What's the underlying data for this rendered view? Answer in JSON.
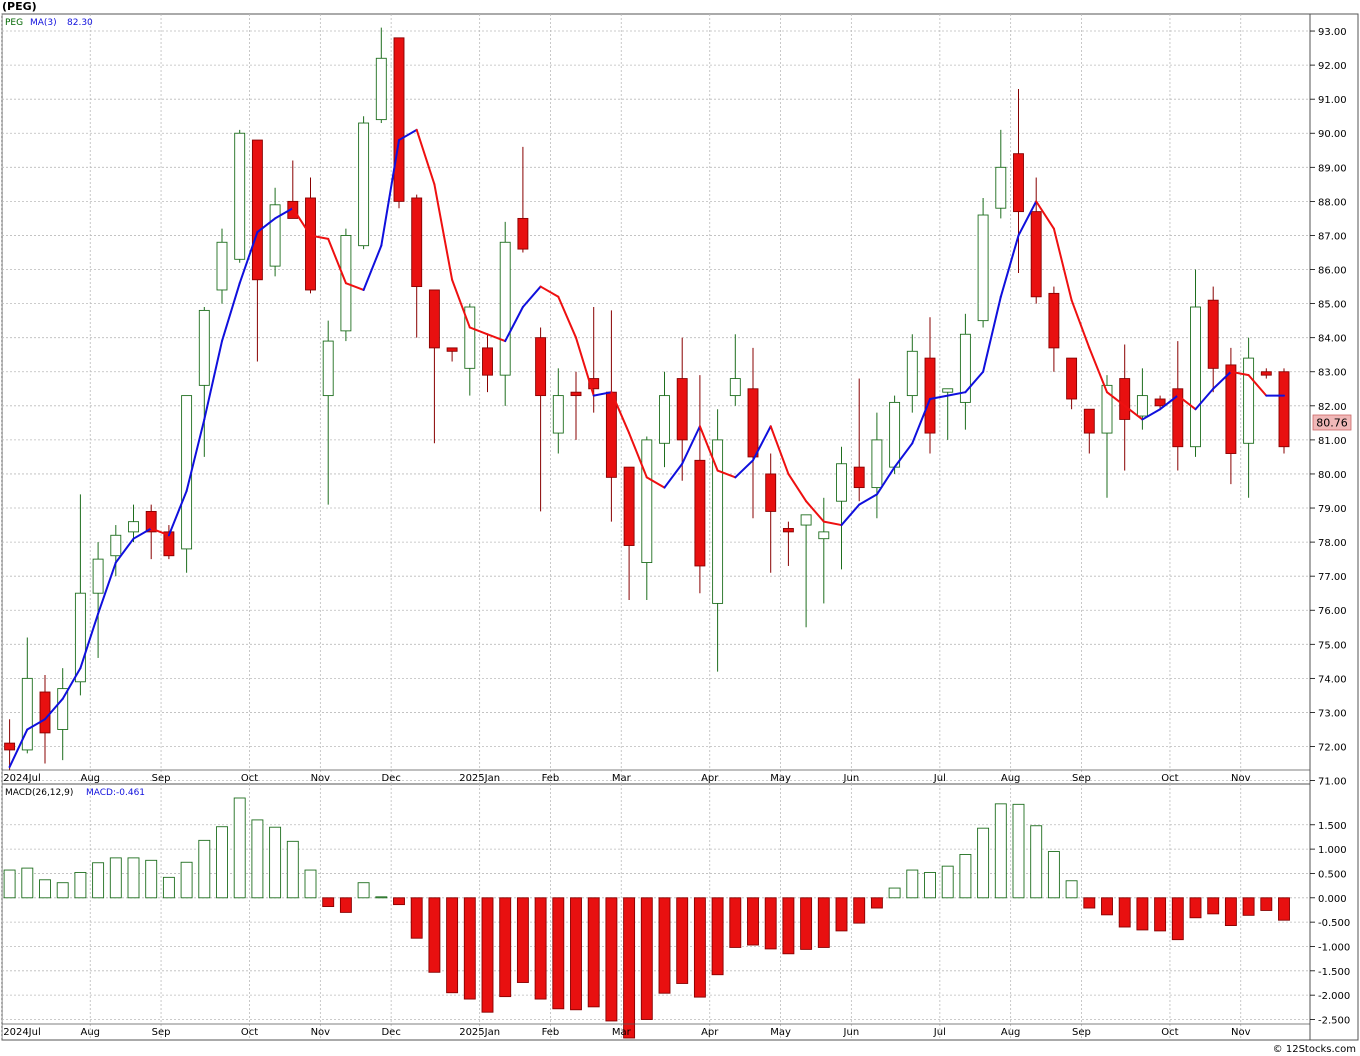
{
  "title": "(PEG)",
  "colors": {
    "up": "#1e6e1e",
    "down": "#e81010",
    "ma_up": "#1010dd",
    "ma_down": "#ee1010",
    "grid": "#bbbbbb",
    "last_price_bg": "#f0b8b8"
  },
  "footer": "© 12Stocks.com",
  "chart_data": [
    {
      "type": "candlestick",
      "panel": "price",
      "legend": {
        "ticker": "PEG",
        "ma_label": "MA(3)",
        "ma_value": "82.30"
      },
      "last_price_label": "80.76",
      "y_range": [
        70.9,
        93.5
      ],
      "y_ticks": [
        "71.00",
        "72.00",
        "73.00",
        "74.00",
        "75.00",
        "76.00",
        "77.00",
        "78.00",
        "79.00",
        "80.00",
        "81.00",
        "82.00",
        "83.00",
        "84.00",
        "85.00",
        "86.00",
        "87.00",
        "88.00",
        "89.00",
        "90.00",
        "91.00",
        "92.00",
        "93.00"
      ],
      "x_labels": [
        {
          "label": "2024Jul",
          "week": 0
        },
        {
          "label": "Aug",
          "week": 5
        },
        {
          "label": "Sep",
          "week": 9
        },
        {
          "label": "Oct",
          "week": 14
        },
        {
          "label": "Nov",
          "week": 18
        },
        {
          "label": "Dec",
          "week": 22
        },
        {
          "label": "2025Jan",
          "week": 27
        },
        {
          "label": "Feb",
          "week": 31
        },
        {
          "label": "Mar",
          "week": 35
        },
        {
          "label": "Apr",
          "week": 40
        },
        {
          "label": "May",
          "week": 44
        },
        {
          "label": "Jun",
          "week": 48
        },
        {
          "label": "Jul",
          "week": 53
        },
        {
          "label": "Aug",
          "week": 57
        },
        {
          "label": "Sep",
          "week": 61
        },
        {
          "label": "Oct",
          "week": 66
        },
        {
          "label": "Nov",
          "week": 70
        }
      ],
      "candles": [
        {
          "o": 72.1,
          "h": 72.8,
          "l": 71.3,
          "c": 71.9
        },
        {
          "o": 71.9,
          "h": 75.2,
          "l": 71.8,
          "c": 74.0
        },
        {
          "o": 73.6,
          "h": 74.1,
          "l": 71.5,
          "c": 72.4
        },
        {
          "o": 72.5,
          "h": 74.3,
          "l": 71.6,
          "c": 73.7
        },
        {
          "o": 73.9,
          "h": 79.4,
          "l": 73.5,
          "c": 76.5
        },
        {
          "o": 76.5,
          "h": 78.0,
          "l": 74.6,
          "c": 77.5
        },
        {
          "o": 77.6,
          "h": 78.5,
          "l": 77.0,
          "c": 78.2
        },
        {
          "o": 78.3,
          "h": 79.1,
          "l": 78.0,
          "c": 78.6
        },
        {
          "o": 78.9,
          "h": 79.1,
          "l": 77.5,
          "c": 78.3
        },
        {
          "o": 78.3,
          "h": 78.5,
          "l": 77.5,
          "c": 77.6
        },
        {
          "o": 77.8,
          "h": 82.3,
          "l": 77.1,
          "c": 82.3
        },
        {
          "o": 82.6,
          "h": 84.9,
          "l": 80.5,
          "c": 84.8
        },
        {
          "o": 85.4,
          "h": 87.2,
          "l": 85.0,
          "c": 86.8
        },
        {
          "o": 86.3,
          "h": 90.1,
          "l": 86.2,
          "c": 90.0
        },
        {
          "o": 89.8,
          "h": 89.8,
          "l": 83.3,
          "c": 85.7
        },
        {
          "o": 86.1,
          "h": 88.4,
          "l": 85.8,
          "c": 87.9
        },
        {
          "o": 88.0,
          "h": 89.2,
          "l": 87.5,
          "c": 87.5
        },
        {
          "o": 88.1,
          "h": 88.7,
          "l": 85.3,
          "c": 85.4
        },
        {
          "o": 82.3,
          "h": 84.5,
          "l": 79.1,
          "c": 83.9
        },
        {
          "o": 84.2,
          "h": 87.2,
          "l": 83.9,
          "c": 87.0
        },
        {
          "o": 86.7,
          "h": 90.5,
          "l": 86.6,
          "c": 90.3
        },
        {
          "o": 90.4,
          "h": 93.1,
          "l": 90.3,
          "c": 92.2
        },
        {
          "o": 92.8,
          "h": 92.8,
          "l": 87.8,
          "c": 88.0
        },
        {
          "o": 88.1,
          "h": 88.2,
          "l": 84.0,
          "c": 85.5
        },
        {
          "o": 85.4,
          "h": 85.4,
          "l": 80.9,
          "c": 83.7
        },
        {
          "o": 83.7,
          "h": 83.7,
          "l": 83.3,
          "c": 83.6
        },
        {
          "o": 83.1,
          "h": 85.0,
          "l": 82.3,
          "c": 84.9
        },
        {
          "o": 83.7,
          "h": 84.1,
          "l": 82.4,
          "c": 82.9
        },
        {
          "o": 82.9,
          "h": 87.4,
          "l": 82.0,
          "c": 86.8
        },
        {
          "o": 87.5,
          "h": 89.6,
          "l": 86.5,
          "c": 86.6
        },
        {
          "o": 84.0,
          "h": 84.3,
          "l": 78.9,
          "c": 82.3
        },
        {
          "o": 81.2,
          "h": 83.1,
          "l": 80.6,
          "c": 82.3
        },
        {
          "o": 82.4,
          "h": 83.0,
          "l": 81.0,
          "c": 82.3
        },
        {
          "o": 82.8,
          "h": 84.9,
          "l": 81.8,
          "c": 82.5
        },
        {
          "o": 82.4,
          "h": 84.8,
          "l": 78.6,
          "c": 79.9
        },
        {
          "o": 80.2,
          "h": 80.2,
          "l": 76.3,
          "c": 77.9
        },
        {
          "o": 77.4,
          "h": 81.1,
          "l": 76.3,
          "c": 81.0
        },
        {
          "o": 80.9,
          "h": 83.0,
          "l": 80.2,
          "c": 82.3
        },
        {
          "o": 82.8,
          "h": 84.0,
          "l": 79.8,
          "c": 81.0
        },
        {
          "o": 80.4,
          "h": 82.9,
          "l": 76.5,
          "c": 77.3
        },
        {
          "o": 76.2,
          "h": 81.9,
          "l": 74.2,
          "c": 81.0
        },
        {
          "o": 82.3,
          "h": 84.1,
          "l": 82.0,
          "c": 82.8
        },
        {
          "o": 82.5,
          "h": 83.7,
          "l": 78.7,
          "c": 80.5
        },
        {
          "o": 80.0,
          "h": 80.6,
          "l": 77.1,
          "c": 78.9
        },
        {
          "o": 78.4,
          "h": 78.6,
          "l": 77.3,
          "c": 78.3
        },
        {
          "o": 78.5,
          "h": 78.8,
          "l": 75.5,
          "c": 78.8
        },
        {
          "o": 78.1,
          "h": 79.3,
          "l": 76.2,
          "c": 78.3
        },
        {
          "o": 79.2,
          "h": 80.8,
          "l": 77.2,
          "c": 80.3
        },
        {
          "o": 80.2,
          "h": 82.8,
          "l": 79.2,
          "c": 79.6
        },
        {
          "o": 79.6,
          "h": 81.8,
          "l": 78.7,
          "c": 81.0
        },
        {
          "o": 80.2,
          "h": 82.3,
          "l": 80.0,
          "c": 82.1
        },
        {
          "o": 82.3,
          "h": 84.1,
          "l": 81.8,
          "c": 83.6
        },
        {
          "o": 83.4,
          "h": 84.6,
          "l": 80.6,
          "c": 81.2
        },
        {
          "o": 82.4,
          "h": 82.5,
          "l": 81.0,
          "c": 82.5
        },
        {
          "o": 82.1,
          "h": 84.7,
          "l": 81.3,
          "c": 84.1
        },
        {
          "o": 84.5,
          "h": 88.1,
          "l": 84.3,
          "c": 87.6
        },
        {
          "o": 87.8,
          "h": 90.1,
          "l": 87.5,
          "c": 89.0
        },
        {
          "o": 89.4,
          "h": 91.3,
          "l": 85.9,
          "c": 87.7
        },
        {
          "o": 87.7,
          "h": 88.7,
          "l": 85.0,
          "c": 85.2
        },
        {
          "o": 85.3,
          "h": 85.5,
          "l": 83.0,
          "c": 83.7
        },
        {
          "o": 83.4,
          "h": 83.4,
          "l": 81.9,
          "c": 82.2
        },
        {
          "o": 81.9,
          "h": 81.9,
          "l": 80.6,
          "c": 81.2
        },
        {
          "o": 81.2,
          "h": 82.9,
          "l": 79.3,
          "c": 82.6
        },
        {
          "o": 82.8,
          "h": 83.8,
          "l": 80.1,
          "c": 81.6
        },
        {
          "o": 81.7,
          "h": 83.1,
          "l": 81.3,
          "c": 82.3
        },
        {
          "o": 82.2,
          "h": 82.3,
          "l": 81.9,
          "c": 82.0
        },
        {
          "o": 82.5,
          "h": 83.9,
          "l": 80.1,
          "c": 80.8
        },
        {
          "o": 80.8,
          "h": 86.0,
          "l": 80.5,
          "c": 84.9
        },
        {
          "o": 85.1,
          "h": 85.5,
          "l": 82.4,
          "c": 83.1
        },
        {
          "o": 83.2,
          "h": 83.7,
          "l": 79.7,
          "c": 80.6
        },
        {
          "o": 80.9,
          "h": 84.0,
          "l": 79.3,
          "c": 83.4
        },
        {
          "o": 83.0,
          "h": 83.1,
          "l": 82.8,
          "c": 82.9
        },
        {
          "o": 83.0,
          "h": 83.1,
          "l": 80.6,
          "c": 80.8
        }
      ],
      "ma": [
        71.4,
        72.5,
        72.8,
        73.4,
        74.3,
        75.9,
        77.4,
        78.1,
        78.4,
        78.2,
        79.5,
        81.6,
        83.9,
        85.6,
        87.1,
        87.5,
        87.8,
        87.0,
        86.9,
        85.6,
        85.4,
        86.7,
        89.8,
        90.1,
        88.5,
        85.7,
        84.3,
        84.1,
        83.9,
        84.9,
        85.5,
        85.2,
        84.0,
        82.3,
        82.4,
        81.2,
        79.9,
        79.6,
        80.3,
        81.4,
        80.1,
        79.9,
        80.4,
        81.4,
        80.0,
        79.2,
        78.6,
        78.5,
        79.1,
        79.4,
        80.2,
        80.9,
        82.2,
        82.3,
        82.4,
        83.0,
        85.2,
        87.0,
        88.0,
        87.2,
        85.1,
        83.7,
        82.4,
        82.0,
        81.6,
        81.9,
        82.3,
        81.9,
        82.5,
        83.0,
        82.9,
        82.3,
        82.3
      ]
    },
    {
      "type": "bar",
      "panel": "macd",
      "legend": {
        "label": "MACD(26,12,9)",
        "value": "MACD:-0.461"
      },
      "y_range": [
        -2.88,
        2.05
      ],
      "y_ticks": [
        "1.500",
        "1.000",
        "0.500",
        "0.000",
        "-0.500",
        "-1.000",
        "-1.500",
        "-2.000",
        "-2.500"
      ],
      "values": [
        0.57,
        0.61,
        0.37,
        0.31,
        0.52,
        0.72,
        0.82,
        0.82,
        0.77,
        0.42,
        0.73,
        1.18,
        1.46,
        2.05,
        1.6,
        1.45,
        1.16,
        0.57,
        -0.18,
        -0.3,
        0.31,
        0.02,
        -0.14,
        -0.83,
        -1.53,
        -1.95,
        -2.08,
        -2.35,
        -2.03,
        -1.74,
        -2.08,
        -2.28,
        -2.3,
        -2.24,
        -2.53,
        -2.88,
        -2.5,
        -1.96,
        -1.76,
        -2.04,
        -1.58,
        -1.02,
        -0.97,
        -1.05,
        -1.15,
        -1.06,
        -1.02,
        -0.68,
        -0.52,
        -0.21,
        0.2,
        0.57,
        0.52,
        0.65,
        0.89,
        1.43,
        1.93,
        1.92,
        1.48,
        0.95,
        0.35,
        -0.21,
        -0.35,
        -0.6,
        -0.66,
        -0.68,
        -0.86,
        -0.41,
        -0.33,
        -0.57,
        -0.36,
        -0.26,
        -0.46
      ]
    }
  ]
}
